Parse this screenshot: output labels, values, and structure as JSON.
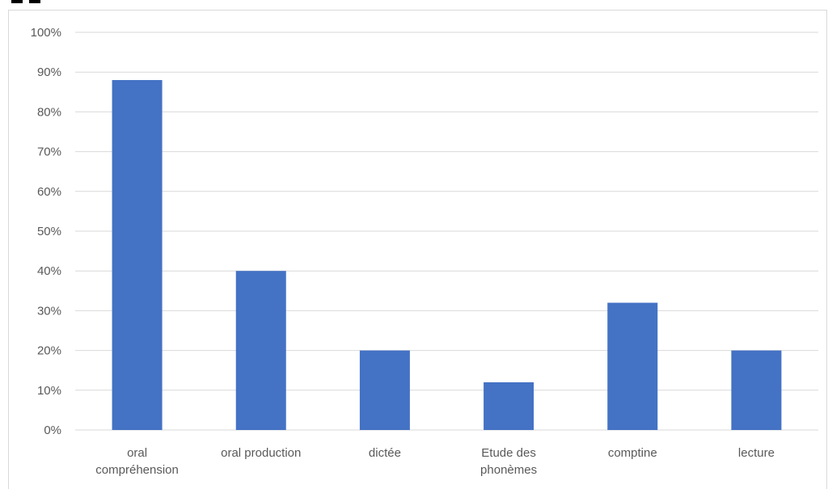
{
  "chart_data": {
    "type": "bar",
    "categories": [
      [
        "oral",
        "compréhension"
      ],
      [
        "oral production"
      ],
      [
        "dictée"
      ],
      [
        "Etude des",
        "phonèmes"
      ],
      [
        "comptine"
      ],
      [
        "lecture"
      ]
    ],
    "series": [
      {
        "values": [
          88,
          40,
          20,
          12,
          32,
          20
        ],
        "color": "#4472c4"
      }
    ],
    "yticks": [
      "0%",
      "10%",
      "20%",
      "30%",
      "40%",
      "50%",
      "60%",
      "70%",
      "80%",
      "90%",
      "100%"
    ],
    "ylim": [
      0,
      100
    ],
    "grid": true,
    "gridColor": "#d9d9d9"
  }
}
